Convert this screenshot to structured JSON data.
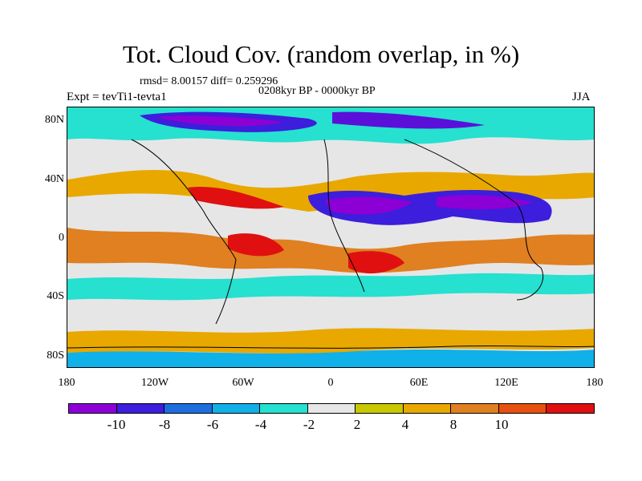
{
  "title": "Tot. Cloud Cov. (random overlap, in %)",
  "stats": "rmsd= 8.00157 diff= 0.259296",
  "period": "0208kyr BP - 0000kyr BP",
  "expt": "Expt = tevTi1-tevta1",
  "season": "JJA",
  "y_axis": [
    "80N",
    "40N",
    "0",
    "40S",
    "80S"
  ],
  "x_axis": [
    "180",
    "120W",
    "60W",
    "0",
    "60E",
    "120E",
    "180"
  ],
  "colorbar": {
    "colors": [
      "#8c00d6",
      "#3c1edc",
      "#1e6ee0",
      "#10b0e8",
      "#26e0d0",
      "#e6e6e6",
      "#c8c800",
      "#e8a800",
      "#e08020",
      "#e85010",
      "#e01010"
    ],
    "labels": [
      "-10",
      "-8",
      "-6",
      "-4",
      "-2",
      "2",
      "4",
      "8",
      "10"
    ]
  }
}
